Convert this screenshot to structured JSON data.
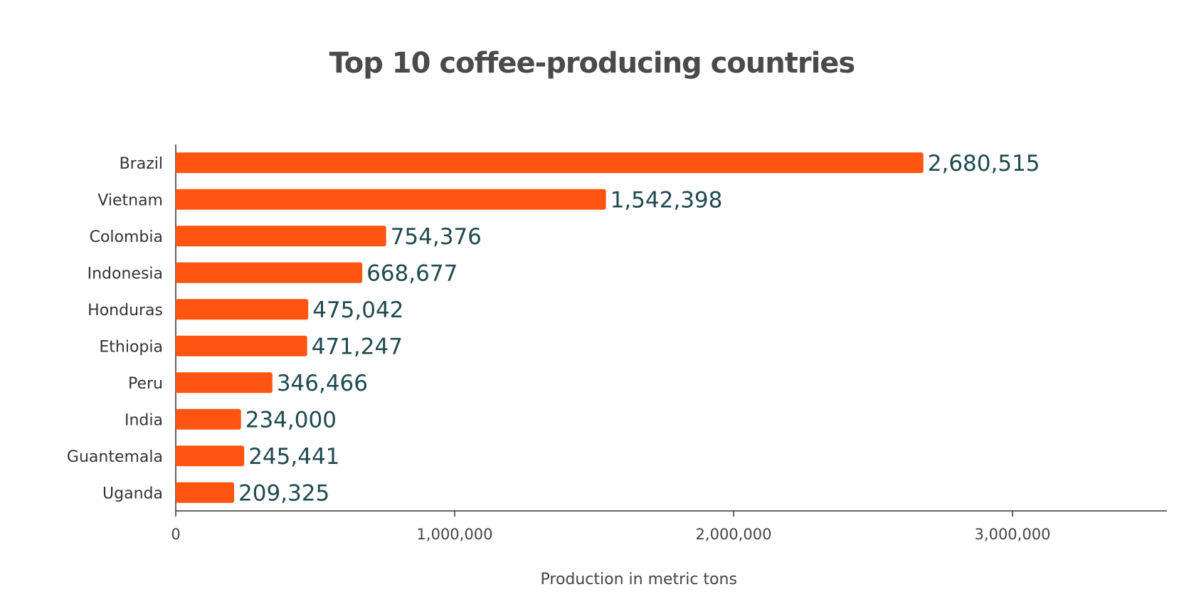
{
  "chart_data": {
    "type": "bar",
    "orientation": "horizontal",
    "title": "Top 10 coffee-producing countries",
    "xlabel": "Production in metric tons",
    "ylabel": "",
    "xlim": [
      0,
      3500000
    ],
    "x_ticks": [
      0,
      1000000,
      2000000,
      3000000
    ],
    "x_tick_labels": [
      "0",
      "1,000,000",
      "2,000,000",
      "3,000,000"
    ],
    "grid": false,
    "categories": [
      "Brazil",
      "Vietnam",
      "Colombia",
      "Indonesia",
      "Honduras",
      "Ethiopia",
      "Peru",
      "India",
      "Guantemala",
      "Uganda"
    ],
    "values": [
      2680515,
      1542398,
      754376,
      668677,
      475042,
      471247,
      346466,
      234000,
      245441,
      209325
    ],
    "value_labels": [
      "2,680,515",
      "1,542,398",
      "754,376",
      "668,677",
      "475,042",
      "471,247",
      "346,466",
      "234,000",
      "245,441",
      "209,325"
    ],
    "bar_color": "#FF5510",
    "value_label_color": "#1f4a4f"
  }
}
